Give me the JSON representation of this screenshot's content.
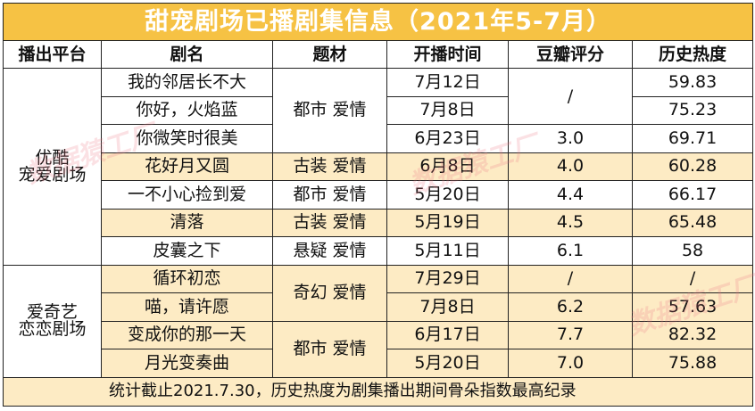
{
  "title": "甜宠剧场已播剧集信息（2021年5-7月）",
  "headers": [
    "播出平台",
    "剧名",
    "题材",
    "开播时间",
    "豆瓣评分",
    "历史热度"
  ],
  "platforms": {
    "youku": "优酷\n宠爱剧场",
    "iqiyi": "爱奇艺\n恋恋剧场"
  },
  "rows": [
    {
      "name": "我的邻居长不大",
      "date": "7月12日",
      "heat": "59.83"
    },
    {
      "name": "你好，火焰蓝",
      "date": "7月8日",
      "heat": "75.23"
    },
    {
      "name": "你微笑时很美",
      "date": "6月23日",
      "score": "3.0",
      "heat": "69.71"
    },
    {
      "name": "花好月又圆",
      "genre": "古装 爱情",
      "date": "6月8日",
      "score": "4.0",
      "heat": "60.28"
    },
    {
      "name": "一不小心捡到爱",
      "genre": "都市 爱情",
      "date": "5月20日",
      "score": "4.4",
      "heat": "66.17"
    },
    {
      "name": "清落",
      "genre": "古装 爱情",
      "date": "5月19日",
      "score": "4.5",
      "heat": "65.48"
    },
    {
      "name": "皮囊之下",
      "genre": "悬疑 爱情",
      "date": "5月11日",
      "score": "6.1",
      "heat": "58"
    },
    {
      "name": "循环初恋",
      "date": "7月29日",
      "score": "/",
      "heat": "/"
    },
    {
      "name": "喵，请许愿",
      "date": "7月8日",
      "score": "6.2",
      "heat": "57.63"
    },
    {
      "name": "变成你的那一天",
      "date": "6月17日",
      "score": "7.7",
      "heat": "82.32"
    },
    {
      "name": "月光变奏曲",
      "date": "5月20日",
      "score": "7.0",
      "heat": "75.88"
    }
  ],
  "merged": {
    "genre_city_1": "都市 爱情",
    "score_na": "/",
    "genre_fantasy": "奇幻 爱情",
    "genre_city_2": "都市 爱情"
  },
  "footer": "统计截止2021.7.30，历史热度为剧集播出期间骨朵指数最高纪录",
  "watermark": "数据猿工厂",
  "colors": {
    "title_bg": "#f6c244",
    "shade": "#fdebc4",
    "border": "#222222"
  }
}
